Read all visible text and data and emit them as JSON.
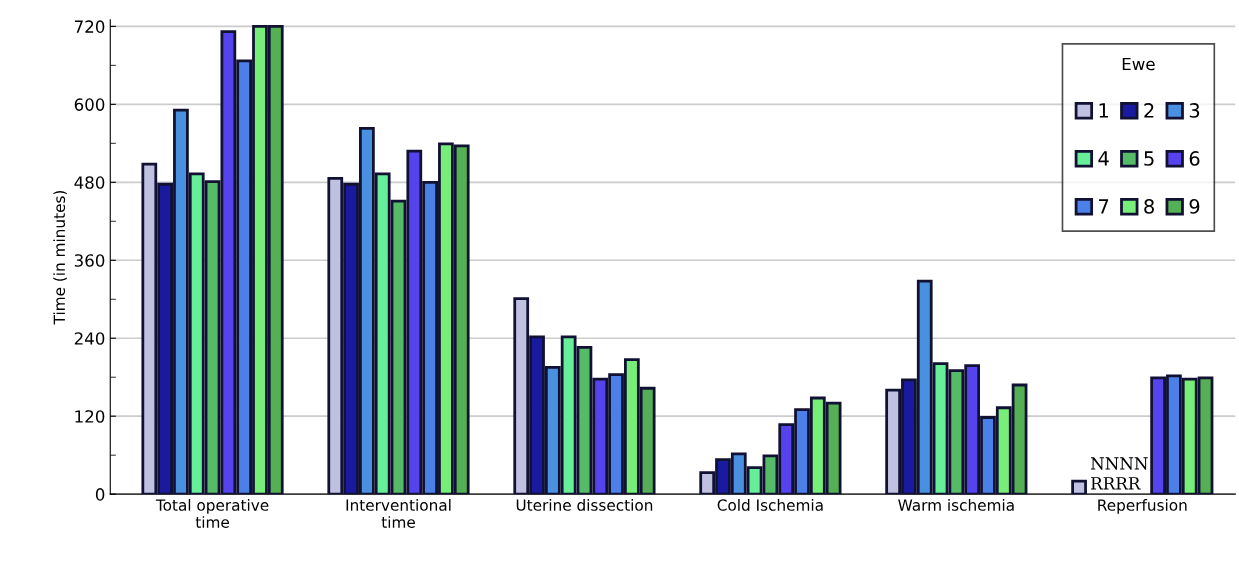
{
  "chart_data": {
    "type": "bar",
    "ylabel": "Time (in minutes)",
    "legend_title": "Ewe",
    "legend": "top right",
    "grid": "y",
    "categories": [
      "Total operative\ntime",
      "Interventional\ntime",
      "Uterine dissection",
      "Cold Ischemia",
      "Warm ischemia",
      "Reperfusion"
    ],
    "ylim": [
      0,
      730
    ],
    "yticks": [
      0,
      {
        "value": 60,
        "label": null
      },
      120,
      {
        "value": 180,
        "label": null
      },
      240,
      {
        "value": 300,
        "label": null
      },
      360,
      {
        "value": 420,
        "label": null
      },
      480,
      {
        "value": 540,
        "label": null
      },
      600,
      {
        "value": 660,
        "label": null
      },
      720
    ],
    "series": [
      {
        "name": "1",
        "color": "#c0c0e0",
        "values": [
          508,
          486,
          301,
          33,
          160,
          20
        ]
      },
      {
        "name": "2",
        "color": "#1a1aa0",
        "values": [
          477,
          477,
          242,
          53,
          176,
          null
        ]
      },
      {
        "name": "3",
        "color": "#4a90e0",
        "values": [
          591,
          563,
          195,
          62,
          328,
          null
        ]
      },
      {
        "name": "4",
        "color": "#66ee99",
        "values": [
          493,
          493,
          242,
          41,
          201,
          null
        ]
      },
      {
        "name": "5",
        "color": "#55bb66",
        "values": [
          481,
          451,
          226,
          59,
          190,
          null
        ]
      },
      {
        "name": "6",
        "color": "#5544ee",
        "values": [
          712,
          528,
          177,
          107,
          198,
          179
        ]
      },
      {
        "name": "7",
        "color": "#4a80e8",
        "values": [
          667,
          480,
          184,
          130,
          118,
          182
        ]
      },
      {
        "name": "8",
        "color": "#77ee77",
        "values": [
          720,
          539,
          207,
          148,
          133,
          177
        ]
      },
      {
        "name": "9",
        "color": "#55b055",
        "values": [
          720,
          536,
          163,
          140,
          168,
          179
        ]
      }
    ],
    "annotations": [
      "NNNN\nRRRR"
    ]
  }
}
